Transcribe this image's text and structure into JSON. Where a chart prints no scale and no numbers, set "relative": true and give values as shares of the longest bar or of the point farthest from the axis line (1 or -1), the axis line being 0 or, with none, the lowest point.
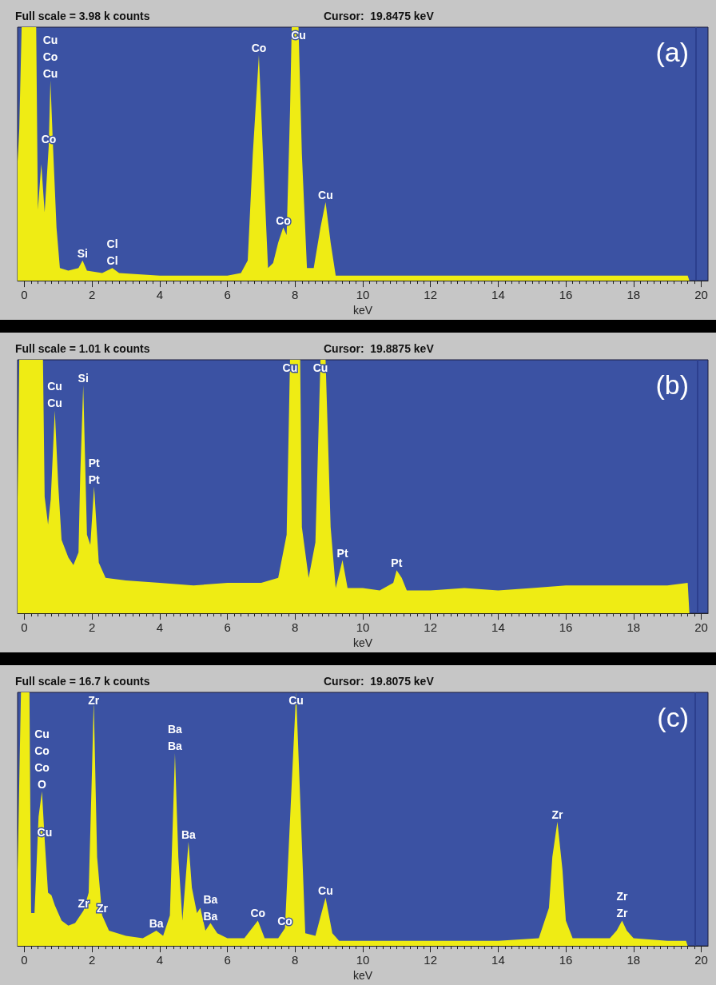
{
  "chart_data": [
    {
      "type": "area",
      "title": "Full scale = 3.98 k counts",
      "subtitle": "Cursor:  19.8475 keV",
      "xlabel": "keV",
      "relative": true,
      "color": "#efec14",
      "x": [
        -0.2,
        -0.15,
        -0.08,
        0.35,
        0.4,
        0.5,
        0.6,
        0.72,
        0.77,
        0.85,
        0.95,
        1.05,
        1.3,
        1.6,
        1.72,
        1.85,
        2.3,
        2.6,
        2.8,
        4,
        6,
        6.4,
        6.6,
        6.75,
        6.93,
        7.05,
        7.2,
        7.35,
        7.5,
        7.65,
        7.75,
        7.85,
        7.9,
        8.1,
        8.2,
        8.35,
        8.55,
        8.75,
        8.9,
        9.05,
        9.2,
        10,
        11,
        12,
        13,
        14,
        15,
        16,
        17,
        18,
        19,
        19.6,
        19.65
      ],
      "values": [
        0.47,
        0.6,
        1,
        1,
        0.28,
        0.46,
        0.27,
        0.53,
        0.79,
        0.52,
        0.21,
        0.05,
        0.04,
        0.05,
        0.08,
        0.04,
        0.03,
        0.05,
        0.03,
        0.02,
        0.02,
        0.03,
        0.08,
        0.5,
        0.89,
        0.5,
        0.05,
        0.07,
        0.15,
        0.21,
        0.18,
        0.67,
        1,
        1,
        0.5,
        0.05,
        0.05,
        0.21,
        0.31,
        0.15,
        0.02,
        0.02,
        0.02,
        0.02,
        0.02,
        0.02,
        0.02,
        0.02,
        0.02,
        0.02,
        0.02,
        0.02,
        0
      ],
      "xlim": [
        -0.2,
        20.2
      ],
      "xticks": [
        0,
        2,
        4,
        6,
        8,
        10,
        12,
        14,
        16,
        18,
        20
      ],
      "ref_lines": [
        {
          "axis": "x",
          "value": 19.8475,
          "color": "#2c3f8e"
        }
      ],
      "annotations": [
        "(a)",
        {
          "text": "Cu",
          "x": 0.77,
          "y": 0.79
        },
        {
          "text": "Co",
          "x": 0.77,
          "y": 0.79
        },
        "Cu",
        {
          "text": "Co",
          "x": 0.72,
          "y": 0.53
        },
        {
          "text": "Si",
          "x": 1.72,
          "y": 0.08
        },
        {
          "text": "Cl",
          "x": 2.6,
          "y": 0.05
        },
        {
          "text": "Cl",
          "x": 2.6,
          "y": 0.05
        },
        {
          "text": "Co",
          "x": 6.93,
          "y": 0.89
        },
        {
          "text": "Cu",
          "x": 8.1,
          "y": 1
        },
        {
          "text": "Co",
          "x": 7.65,
          "y": 0.21
        },
        {
          "text": "Cu",
          "x": 8.9,
          "y": 0.31
        }
      ]
    },
    {
      "type": "area",
      "title": "Full scale = 1.01 k counts",
      "subtitle": "Cursor:  19.8875 keV",
      "xlabel": "keV",
      "relative": true,
      "color": "#efec14",
      "x": [
        -0.2,
        -0.15,
        0.55,
        0.6,
        0.7,
        0.78,
        0.9,
        1.0,
        1.1,
        1.3,
        1.45,
        1.6,
        1.65,
        1.74,
        1.85,
        1.95,
        2.06,
        2.2,
        2.4,
        3,
        4,
        5,
        6,
        7,
        7.5,
        7.75,
        7.85,
        8.15,
        8.2,
        8.4,
        8.6,
        8.75,
        8.9,
        9.05,
        9.2,
        9.4,
        9.55,
        10,
        10.5,
        10.9,
        11.0,
        11.15,
        11.3,
        12,
        13,
        14,
        15,
        16,
        17,
        18,
        19,
        19.6,
        19.65
      ],
      "values": [
        0.45,
        1,
        1,
        0.46,
        0.35,
        0.45,
        0.8,
        0.51,
        0.29,
        0.22,
        0.19,
        0.24,
        0.54,
        0.9,
        0.31,
        0.27,
        0.5,
        0.2,
        0.14,
        0.13,
        0.12,
        0.11,
        0.12,
        0.12,
        0.14,
        0.31,
        1,
        1,
        0.34,
        0.14,
        0.28,
        1,
        1,
        0.34,
        0.1,
        0.21,
        0.1,
        0.1,
        0.09,
        0.12,
        0.17,
        0.14,
        0.09,
        0.09,
        0.1,
        0.09,
        0.1,
        0.11,
        0.11,
        0.11,
        0.11,
        0.12,
        0
      ],
      "xlim": [
        -0.2,
        20.2
      ],
      "xticks": [
        0,
        2,
        4,
        6,
        8,
        10,
        12,
        14,
        16,
        18,
        20
      ],
      "ref_lines": [
        {
          "axis": "x",
          "value": 19.8875,
          "color": "#2c3f8e"
        }
      ],
      "annotations": [
        "(b)",
        {
          "text": "Cu",
          "x": 0.9,
          "y": 0.8
        },
        {
          "text": "Cu",
          "x": 0.9,
          "y": 0.8
        },
        {
          "text": "Si",
          "x": 1.74,
          "y": 0.9
        },
        {
          "text": "Pt",
          "x": 2.06,
          "y": 0.5
        },
        {
          "text": "Pt",
          "x": 2.06,
          "y": 0.5
        },
        {
          "text": "Cu",
          "x": 7.85,
          "y": 1
        },
        {
          "text": "Cu",
          "x": 8.75,
          "y": 1
        },
        {
          "text": "Pt",
          "x": 9.4,
          "y": 0.21
        },
        {
          "text": "Pt",
          "x": 11.0,
          "y": 0.17
        }
      ]
    },
    {
      "type": "area",
      "title": "Full scale = 16.7 k counts",
      "subtitle": "Cursor:  19.8075 keV",
      "xlabel": "keV",
      "relative": true,
      "color": "#efec14",
      "x": [
        -0.2,
        -0.1,
        0.15,
        0.2,
        0.3,
        0.42,
        0.52,
        0.6,
        0.7,
        0.8,
        0.9,
        1.1,
        1.3,
        1.5,
        1.75,
        1.9,
        2.0,
        2.05,
        2.15,
        2.3,
        2.5,
        3,
        3.5,
        3.9,
        4.1,
        4.3,
        4.45,
        4.55,
        4.67,
        4.85,
        4.95,
        5.1,
        5.2,
        5.35,
        5.5,
        5.7,
        6.0,
        6.5,
        6.9,
        7.1,
        7.5,
        7.7,
        7.9,
        8.03,
        8.15,
        8.3,
        8.6,
        8.9,
        9.1,
        9.3,
        10,
        12,
        14,
        15.2,
        15.5,
        15.6,
        15.75,
        15.9,
        16.0,
        16.2,
        17.3,
        17.5,
        17.66,
        17.8,
        18.0,
        19,
        19.55,
        19.6
      ],
      "values": [
        0.3,
        1,
        1,
        0.13,
        0.13,
        0.51,
        0.61,
        0.42,
        0.21,
        0.2,
        0.16,
        0.1,
        0.08,
        0.09,
        0.14,
        0.21,
        0.7,
        0.97,
        0.35,
        0.12,
        0.06,
        0.04,
        0.03,
        0.06,
        0.04,
        0.12,
        0.76,
        0.35,
        0.1,
        0.41,
        0.23,
        0.13,
        0.15,
        0.06,
        0.09,
        0.05,
        0.03,
        0.03,
        0.1,
        0.03,
        0.03,
        0.07,
        0.64,
        1,
        0.58,
        0.05,
        0.04,
        0.19,
        0.05,
        0.02,
        0.02,
        0.02,
        0.02,
        0.03,
        0.15,
        0.35,
        0.49,
        0.3,
        0.1,
        0.03,
        0.03,
        0.06,
        0.1,
        0.06,
        0.03,
        0.02,
        0.02,
        0
      ],
      "xlim": [
        -0.2,
        20.2
      ],
      "xticks": [
        0,
        2,
        4,
        6,
        8,
        10,
        12,
        14,
        16,
        18,
        20
      ],
      "ref_lines": [
        {
          "axis": "x",
          "value": 19.8075,
          "color": "#2c3f8e"
        }
      ],
      "annotations": [
        "(c)",
        {
          "text": "Zr",
          "x": 2.05,
          "y": 0.97
        },
        {
          "text": "O",
          "x": 0.52,
          "y": 0.61
        },
        {
          "text": "Co",
          "x": 0.52,
          "y": 0.61
        },
        "Co",
        "Cu",
        {
          "text": "Cu",
          "x": 0.6,
          "y": 0.42
        },
        {
          "text": "Zr",
          "x": 1.75,
          "y": 0.14
        },
        {
          "text": "Zr",
          "x": 2.3,
          "y": 0.12
        },
        {
          "text": "Ba",
          "x": 4.45,
          "y": 0.76
        },
        {
          "text": "Ba",
          "x": 4.45,
          "y": 0.76
        },
        {
          "text": "Ba",
          "x": 4.85,
          "y": 0.41
        },
        {
          "text": "Ba",
          "x": 5.5,
          "y": 0.09
        },
        {
          "text": "Ba",
          "x": 5.5,
          "y": 0.09
        },
        {
          "text": "Ba",
          "x": 3.9,
          "y": 0.06
        },
        {
          "text": "Co",
          "x": 6.9,
          "y": 0.1
        },
        {
          "text": "Co",
          "x": 7.7,
          "y": 0.07
        },
        {
          "text": "Cu",
          "x": 8.03,
          "y": 1
        },
        {
          "text": "Cu",
          "x": 8.9,
          "y": 0.19
        },
        {
          "text": "Zr",
          "x": 15.75,
          "y": 0.49
        },
        {
          "text": "Zr",
          "x": 17.66,
          "y": 0.1
        },
        {
          "text": "Zr",
          "x": 17.66,
          "y": 0.1
        }
      ]
    }
  ]
}
